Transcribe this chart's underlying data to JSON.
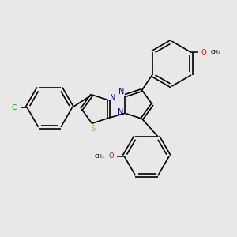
{
  "bg_color": "#e8e8e8",
  "bond_color": "#000000",
  "N_color": "#0000cc",
  "S_color": "#b8b800",
  "Cl_color": "#00aa00",
  "O_color": "#ff0000",
  "line_width": 1.2,
  "dbo": 0.055,
  "r6": 0.72,
  "r5": 0.48,
  "xlim": [
    0.0,
    7.5
  ],
  "ylim": [
    0.8,
    8.2
  ]
}
